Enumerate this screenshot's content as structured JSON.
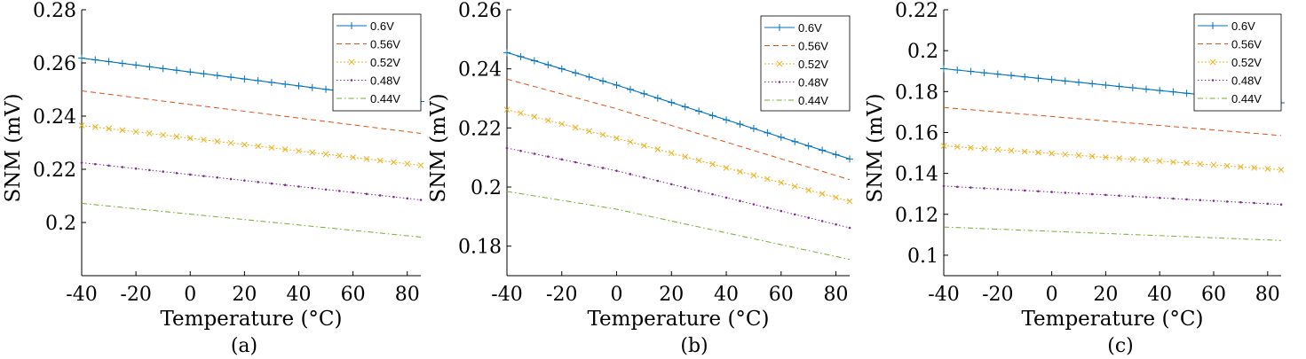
{
  "colors": {
    "0.6V": "#0072BD",
    "0.56V": "#D95319",
    "0.52V": "#EDB120",
    "0.48V": "#7E2F8E",
    "0.44V": "#77AC30"
  },
  "chart_data": [
    {
      "type": "line",
      "caption": "(a)",
      "xlabel": "Temperature (°C)",
      "ylabel": "SNM (mV)",
      "xlim": [
        -40,
        85
      ],
      "ylim": [
        0.18,
        0.28
      ],
      "xticks": [
        -40,
        -20,
        0,
        20,
        40,
        60,
        80
      ],
      "xtick_labels": [
        "-40",
        "-20",
        "0",
        "20",
        "40",
        "60",
        "80"
      ],
      "yticks": [
        0.2,
        0.22,
        0.24,
        0.26,
        0.28
      ],
      "ytick_labels": [
        "0.2",
        "0.22",
        "0.24",
        "0.26",
        "0.28"
      ],
      "legend_position": "top-right",
      "series": [
        {
          "name": "0.6V",
          "style": "solid-plus",
          "x": [
            -40,
            85
          ],
          "values": [
            0.2618,
            0.2455
          ]
        },
        {
          "name": "0.56V",
          "style": "dashed",
          "x": [
            -40,
            85
          ],
          "values": [
            0.2495,
            0.2335
          ]
        },
        {
          "name": "0.52V",
          "style": "dotted-x",
          "x": [
            -40,
            85
          ],
          "values": [
            0.2365,
            0.2215
          ]
        },
        {
          "name": "0.48V",
          "style": "dotted-point",
          "x": [
            -40,
            85
          ],
          "values": [
            0.2225,
            0.2085
          ]
        },
        {
          "name": "0.44V",
          "style": "dashdot",
          "x": [
            -40,
            85
          ],
          "values": [
            0.2072,
            0.1945
          ]
        }
      ]
    },
    {
      "type": "line",
      "caption": "(b)",
      "xlabel": "Temperature (°C)",
      "ylabel": "SNM (mV)",
      "xlim": [
        -40,
        85
      ],
      "ylim": [
        0.17,
        0.26
      ],
      "xticks": [
        -40,
        -20,
        0,
        20,
        40,
        60,
        80
      ],
      "xtick_labels": [
        "-40",
        "-20",
        "0",
        "20",
        "40",
        "60",
        "80"
      ],
      "yticks": [
        0.18,
        0.2,
        0.22,
        0.24,
        0.26
      ],
      "ytick_labels": [
        "0.18",
        "0.2",
        "0.22",
        "0.24",
        "0.26"
      ],
      "legend_position": "top-right",
      "series": [
        {
          "name": "0.6V",
          "style": "solid-plus",
          "x": [
            -40,
            0,
            85
          ],
          "values": [
            0.2455,
            0.2345,
            0.2095
          ]
        },
        {
          "name": "0.56V",
          "style": "dashed",
          "x": [
            -40,
            0,
            85
          ],
          "values": [
            0.2365,
            0.2265,
            0.2025
          ]
        },
        {
          "name": "0.52V",
          "style": "dotted-x",
          "x": [
            -40,
            0,
            85
          ],
          "values": [
            0.2262,
            0.2165,
            0.1952
          ]
        },
        {
          "name": "0.48V",
          "style": "dotted-point",
          "x": [
            -40,
            0,
            85
          ],
          "values": [
            0.2132,
            0.2055,
            0.1862
          ]
        },
        {
          "name": "0.44V",
          "style": "dashdot",
          "x": [
            -40,
            0,
            85
          ],
          "values": [
            0.1985,
            0.1925,
            0.1755
          ]
        }
      ]
    },
    {
      "type": "line",
      "caption": "(c)",
      "xlabel": "Temperature (°C)",
      "ylabel": "SNM (mV)",
      "xlim": [
        -40,
        85
      ],
      "ylim": [
        0.09,
        0.22
      ],
      "xticks": [
        -40,
        -20,
        0,
        20,
        40,
        60,
        80
      ],
      "xtick_labels": [
        "-40",
        "-20",
        "0",
        "20",
        "40",
        "60",
        "80"
      ],
      "yticks": [
        0.1,
        0.12,
        0.14,
        0.16,
        0.18,
        0.2,
        0.22
      ],
      "ytick_labels": [
        "0.1",
        "0.12",
        "0.14",
        "0.16",
        "0.18",
        "0.2",
        "0.22"
      ],
      "legend_position": "top-right",
      "series": [
        {
          "name": "0.6V",
          "style": "solid-plus",
          "x": [
            -40,
            85
          ],
          "values": [
            0.1912,
            0.1745
          ]
        },
        {
          "name": "0.56V",
          "style": "dashed",
          "x": [
            -40,
            85
          ],
          "values": [
            0.1722,
            0.1585
          ]
        },
        {
          "name": "0.52V",
          "style": "dotted-x",
          "x": [
            -40,
            85
          ],
          "values": [
            0.1535,
            0.1418
          ]
        },
        {
          "name": "0.48V",
          "style": "dotted-point",
          "x": [
            -40,
            85
          ],
          "values": [
            0.1338,
            0.1248
          ]
        },
        {
          "name": "0.44V",
          "style": "dashdot",
          "x": [
            -40,
            85
          ],
          "values": [
            0.1138,
            0.1072
          ]
        }
      ]
    }
  ]
}
